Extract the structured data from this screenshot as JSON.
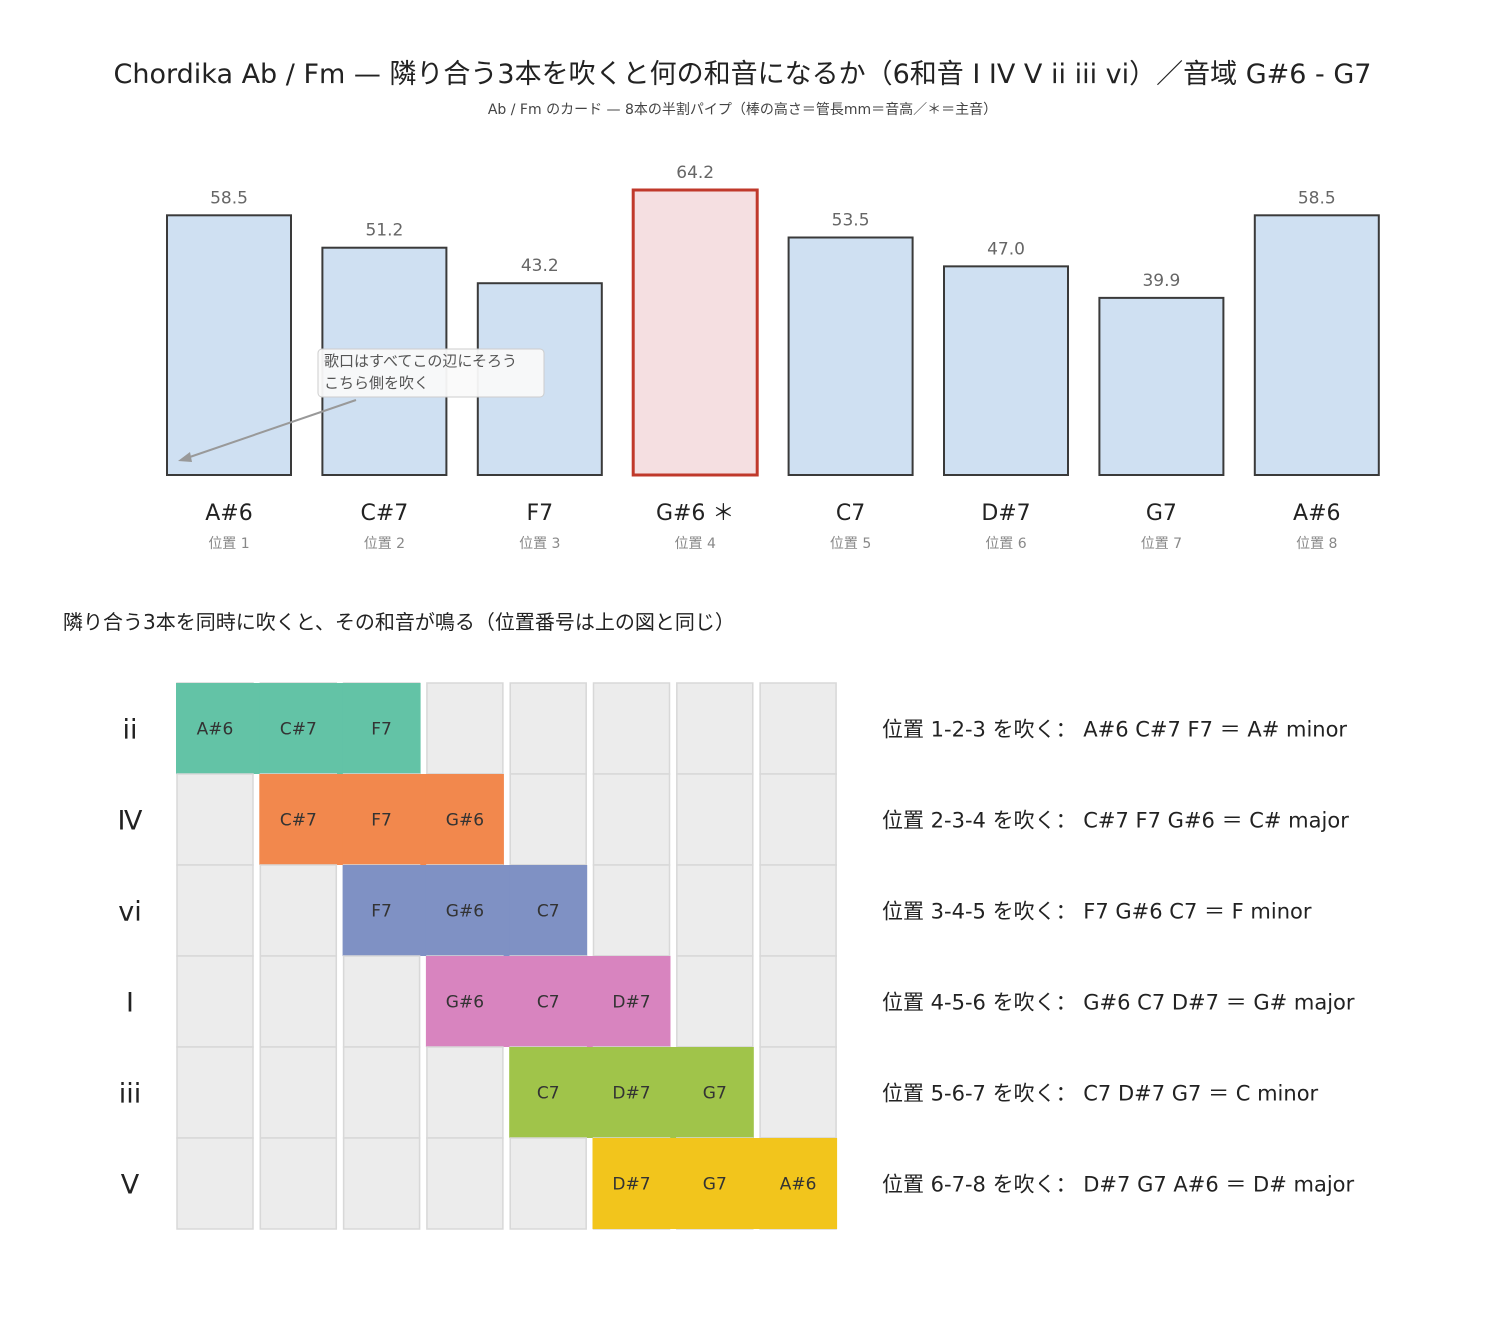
{
  "title": "Chordika Ab / Fm — 隣り合う3本を吹くと何の和音になるか（6和音 I IV V ii iii vi）／音域 G#6 - G7",
  "subtitle": "Ab / Fm のカード — 8本の半割パイプ（棒の高さ＝管長mm＝音高／＊＝主音）",
  "section_title": "隣り合う3本を同時に吹くと、その和音が鳴る（位置番号は上の図と同じ）",
  "colors": {
    "bar_fill": "#cfe0f2",
    "bar_stroke": "#3a3a3a",
    "tonic_fill": "#f5dfe1",
    "tonic_stroke": "#c0392b",
    "empty_cell": "#ececec",
    "empty_cell_stroke": "#d8d8d8"
  },
  "chart_data": [
    {
      "type": "bar",
      "categories": [
        "A#6",
        "C#7",
        "F7",
        "G#6 ＊",
        "C7",
        "D#7",
        "G7",
        "A#6"
      ],
      "positions": [
        "位置 1",
        "位置 2",
        "位置 3",
        "位置 4",
        "位置 5",
        "位置 6",
        "位置 7",
        "位置 8"
      ],
      "values": [
        58.5,
        51.2,
        43.2,
        64.2,
        53.5,
        47.0,
        39.9,
        58.5
      ],
      "value_labels": [
        "58.5",
        "51.2",
        "43.2",
        "64.2",
        "53.5",
        "47.0",
        "39.9",
        "58.5"
      ],
      "highlight_index": 3,
      "ylim": [
        0,
        64.2
      ],
      "annotation": {
        "lines": [
          "歌口はすべてこの辺にそろう",
          "こちら側を吹く"
        ]
      }
    },
    {
      "type": "table",
      "rows": [
        {
          "numeral": "ii",
          "start": 0,
          "notes": [
            "A#6",
            "C#7",
            "F7"
          ],
          "color": "#63c3a6",
          "description": "位置 1-2-3 を吹く：  A#6 C#7 F7 ＝ A# minor"
        },
        {
          "numeral": "Ⅳ",
          "start": 1,
          "notes": [
            "C#7",
            "F7",
            "G#6"
          ],
          "color": "#f2884d",
          "description": "位置 2-3-4 を吹く：  C#7 F7 G#6 ＝ C# major"
        },
        {
          "numeral": "vi",
          "start": 2,
          "notes": [
            "F7",
            "G#6",
            "C7"
          ],
          "color": "#7f91c4",
          "description": "位置 3-4-5 を吹く：  F7 G#6 C7 ＝ F minor"
        },
        {
          "numeral": "I",
          "start": 3,
          "notes": [
            "G#6",
            "C7",
            "D#7"
          ],
          "color": "#d884bf",
          "description": "位置 4-5-6 を吹く：  G#6 C7 D#7 ＝ G# major"
        },
        {
          "numeral": "iii",
          "start": 4,
          "notes": [
            "C7",
            "D#7",
            "G7"
          ],
          "color": "#a0c44a",
          "description": "位置 5-6-7 を吹く：  C7 D#7 G7 ＝ C minor"
        },
        {
          "numeral": "V",
          "start": 5,
          "notes": [
            "D#7",
            "G7",
            "A#6"
          ],
          "color": "#f2c51c",
          "description": "位置 6-7-8 を吹く：  D#7 G7 A#6 ＝ D# major"
        }
      ]
    }
  ]
}
